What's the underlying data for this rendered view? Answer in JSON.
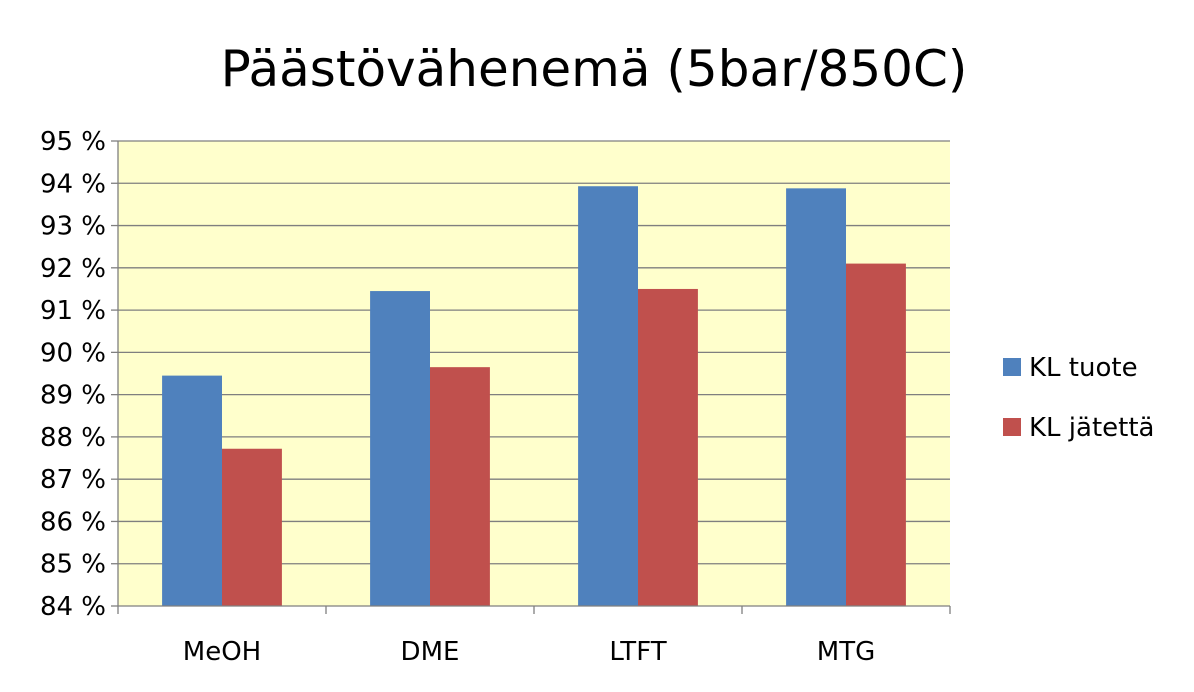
{
  "chart_data": {
    "type": "bar",
    "title": "Päästövähenemä (5bar/850C)",
    "xlabel": "",
    "ylabel": "",
    "categories": [
      "MeOH",
      "DME",
      "LTFT",
      "MTG"
    ],
    "series": [
      {
        "name": "KL tuote",
        "values": [
          89.45,
          91.45,
          93.93,
          93.88
        ]
      },
      {
        "name": "KL jätettä",
        "values": [
          87.72,
          89.65,
          91.5,
          92.1
        ]
      }
    ],
    "ylim": [
      84,
      95
    ],
    "ytick_step": 1,
    "y_tick_format": "percent",
    "grid": true,
    "legend_position": "right",
    "colors": {
      "plot_background": "#FFFFCC",
      "series": [
        "#4F81BD",
        "#C0504D"
      ],
      "gridline": "#7F7F7F",
      "axis": "#7F7F7F"
    }
  }
}
